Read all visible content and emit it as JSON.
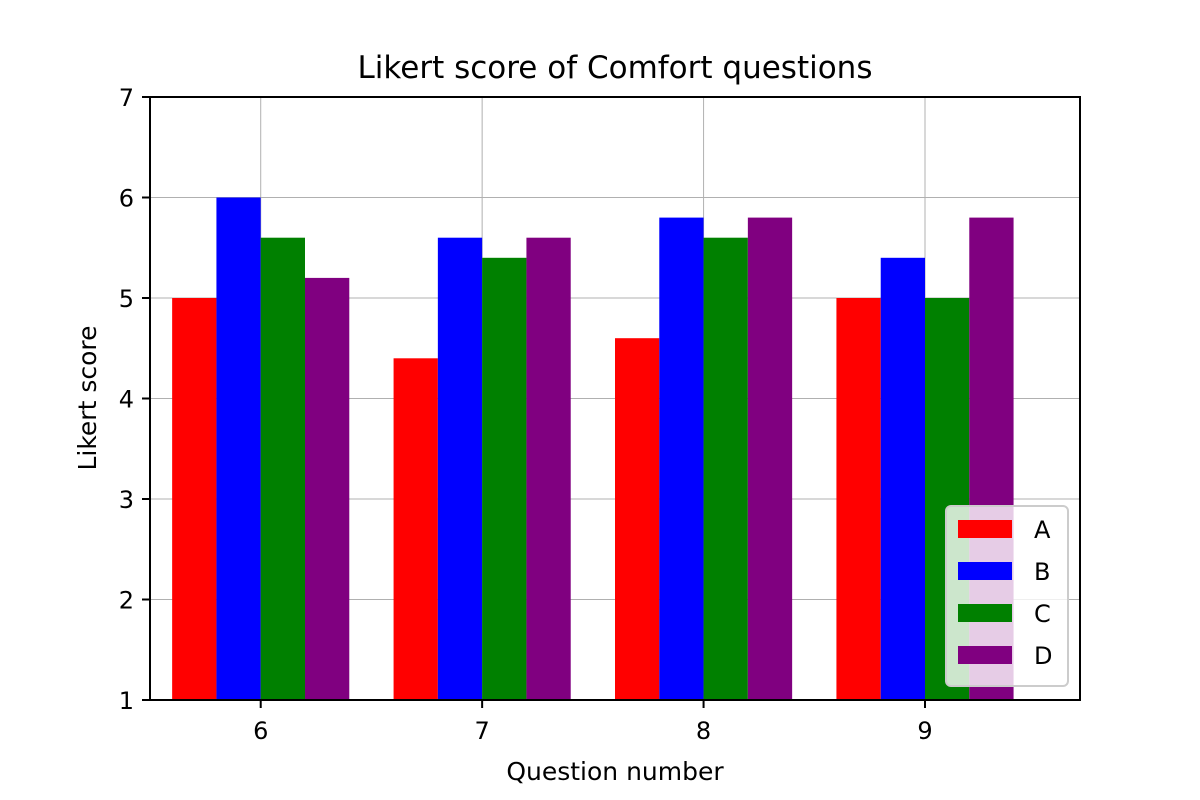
{
  "chart_data": {
    "type": "bar",
    "title": "Likert score of Comfort questions",
    "xlabel": "Question number",
    "ylabel": "Likert score",
    "categories": [
      "6",
      "7",
      "8",
      "9"
    ],
    "ylim": [
      1,
      7
    ],
    "yticks": [
      1,
      2,
      3,
      4,
      5,
      6,
      7
    ],
    "grid": true,
    "legend_position": "lower-right",
    "series": [
      {
        "name": "A",
        "color": "#ff0000",
        "values": [
          5.0,
          4.4,
          4.6,
          5.0
        ]
      },
      {
        "name": "B",
        "color": "#0000ff",
        "values": [
          6.0,
          5.6,
          5.8,
          5.4
        ]
      },
      {
        "name": "C",
        "color": "#008000",
        "values": [
          5.6,
          5.4,
          5.6,
          5.0
        ]
      },
      {
        "name": "D",
        "color": "#800080",
        "values": [
          5.2,
          5.6,
          5.8,
          5.8
        ]
      }
    ]
  }
}
